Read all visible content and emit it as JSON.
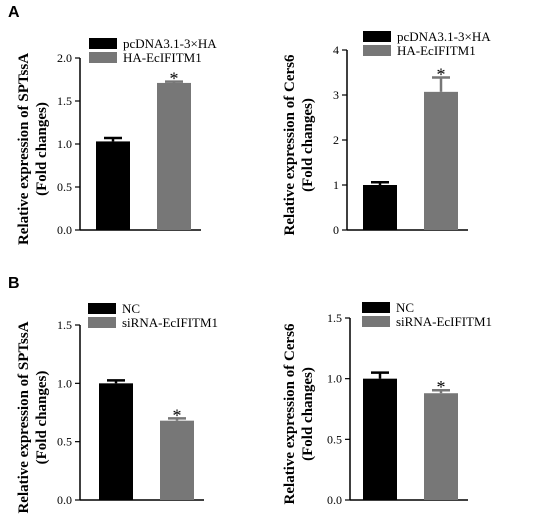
{
  "panel_labels": [
    "A",
    "B"
  ],
  "colors": {
    "bar_dark": "#000000",
    "bar_gray": "#777777"
  },
  "chart_data": [
    {
      "panel": "A",
      "type": "bar",
      "ylabel_line1": "Relative expression of SPTssA",
      "ylabel_line2": "(Fold changes)",
      "ylim": [
        0,
        2.0
      ],
      "yticks": [
        0.0,
        0.5,
        1.0,
        1.5,
        2.0
      ],
      "tick_labels": [
        "0.0",
        "0.5",
        "1.0",
        "1.5",
        "2.0"
      ],
      "legend": [
        "pcDNA3.1-3×HA",
        "HA-EcIFITM1"
      ],
      "values": [
        1.03,
        1.71
      ],
      "errors": [
        0.04,
        0.015
      ],
      "significance": [
        "",
        "*"
      ],
      "grid": false,
      "legend_position": "top-left"
    },
    {
      "panel": "A",
      "type": "bar",
      "ylabel_line1": "Relative expression of Cers6",
      "ylabel_line2": "(Fold changes)",
      "ylim": [
        0,
        4
      ],
      "yticks": [
        0,
        1,
        2,
        3,
        4
      ],
      "tick_labels": [
        "0",
        "1",
        "2",
        "3",
        "4"
      ],
      "legend": [
        "pcDNA3.1-3×HA",
        "HA-EcIFITM1"
      ],
      "values": [
        1.0,
        3.07
      ],
      "errors": [
        0.06,
        0.32
      ],
      "significance": [
        "",
        "*"
      ],
      "grid": false,
      "legend_position": "top-left"
    },
    {
      "panel": "B",
      "type": "bar",
      "ylabel_line1": "Relative expression of SPTssA",
      "ylabel_line2": "(Fold changes)",
      "ylim": [
        0,
        1.5
      ],
      "yticks": [
        0.0,
        0.5,
        1.0,
        1.5
      ],
      "tick_labels": [
        "0.0",
        "0.5",
        "1.0",
        "1.5"
      ],
      "legend": [
        "NC",
        "siRNA-EcIFITM1"
      ],
      "values": [
        1.0,
        0.68
      ],
      "errors": [
        0.025,
        0.02
      ],
      "significance": [
        "",
        "*"
      ],
      "grid": false,
      "legend_position": "top-left"
    },
    {
      "panel": "B",
      "type": "bar",
      "ylabel_line1": "Relative expression of Cers6",
      "ylabel_line2": "(Fold changes)",
      "ylim": [
        0,
        1.5
      ],
      "yticks": [
        0.0,
        0.5,
        1.0,
        1.5
      ],
      "tick_labels": [
        "0.0",
        "0.5",
        "1.0",
        "1.5"
      ],
      "legend": [
        "NC",
        "siRNA-EcIFITM1"
      ],
      "values": [
        1.0,
        0.88
      ],
      "errors": [
        0.05,
        0.025
      ],
      "significance": [
        "",
        "*"
      ],
      "grid": false,
      "legend_position": "top-left"
    }
  ]
}
